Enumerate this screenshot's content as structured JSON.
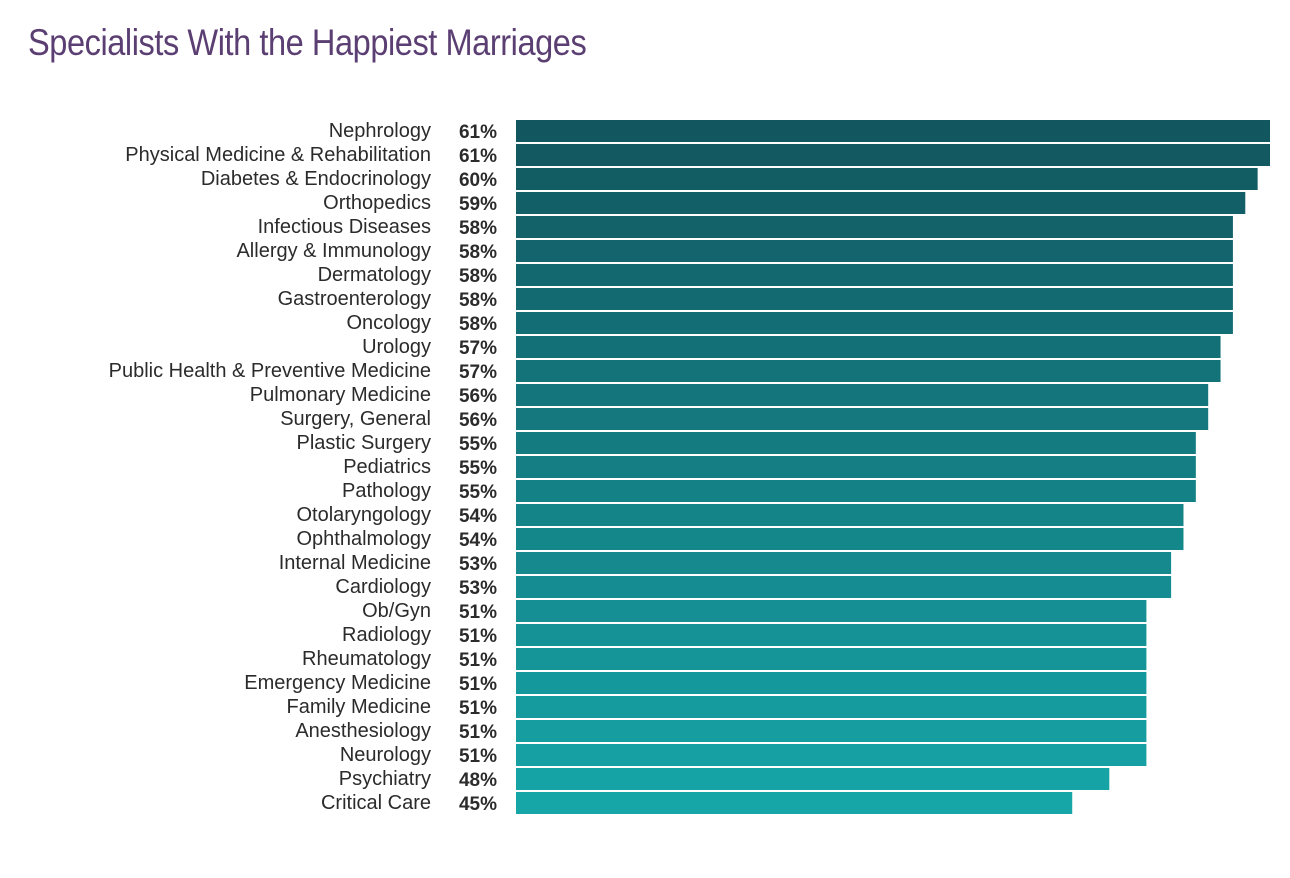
{
  "title": "Specialists With the Happiest Marriages",
  "chart_data": {
    "type": "bar",
    "orientation": "horizontal",
    "title": "Specialists With the Happiest Marriages",
    "xlabel": "",
    "ylabel": "",
    "grid": false,
    "legend": "none",
    "colors": {
      "top": "#12565f",
      "bottom": "#16a6a8"
    },
    "categories": [
      "Nephrology",
      "Physical Medicine & Rehabilitation",
      "Diabetes & Endocrinology",
      "Orthopedics",
      "Infectious Diseases",
      "Allergy & Immunology",
      "Dermatology",
      "Gastroenterology",
      "Oncology",
      "Urology",
      "Public Health & Preventive Medicine",
      "Pulmonary Medicine",
      "Surgery, General",
      "Plastic Surgery",
      "Pediatrics",
      "Pathology",
      "Otolaryngology",
      "Ophthalmology",
      "Internal Medicine",
      "Cardiology",
      "Ob/Gyn",
      "Radiology",
      "Rheumatology",
      "Emergency Medicine",
      "Family Medicine",
      "Anesthesiology",
      "Neurology",
      "Psychiatry",
      "Critical Care"
    ],
    "values": [
      61,
      61,
      60,
      59,
      58,
      58,
      58,
      58,
      58,
      57,
      57,
      56,
      56,
      55,
      55,
      55,
      54,
      54,
      53,
      53,
      51,
      51,
      51,
      51,
      51,
      51,
      51,
      48,
      45
    ],
    "value_labels": [
      "61%",
      "61%",
      "60%",
      "59%",
      "58%",
      "58%",
      "58%",
      "58%",
      "58%",
      "57%",
      "57%",
      "56%",
      "56%",
      "55%",
      "55%",
      "55%",
      "54%",
      "54%",
      "53%",
      "53%",
      "51%",
      "51%",
      "51%",
      "51%",
      "51%",
      "51%",
      "51%",
      "48%",
      "45%"
    ],
    "xlim": [
      0,
      61
    ]
  }
}
